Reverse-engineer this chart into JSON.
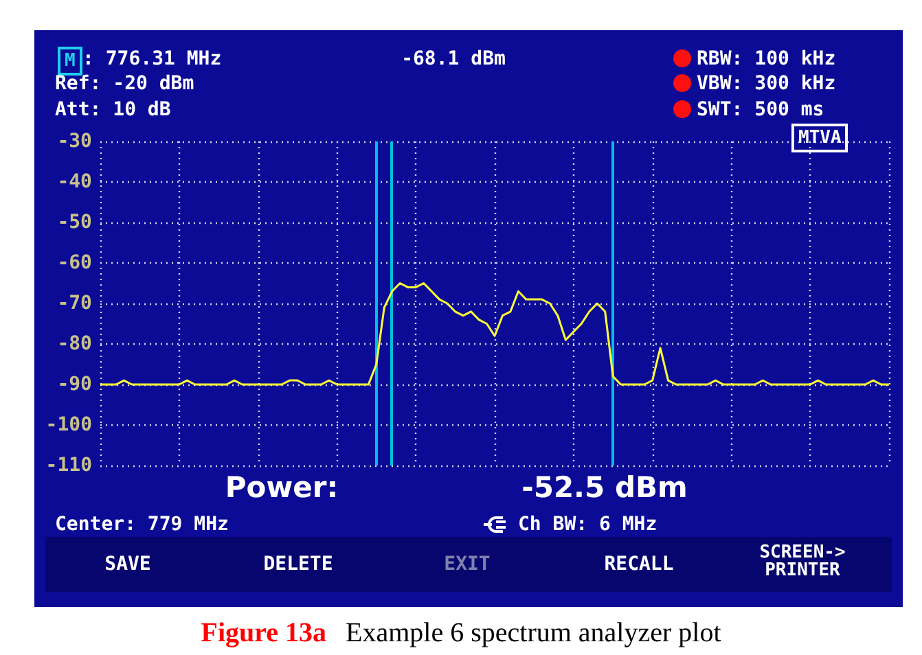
{
  "chart_data": {
    "type": "line",
    "title": "Figure 13a",
    "subtitle": "Example 6 spectrum analyzer plot",
    "categories": [
      null,
      null,
      null,
      null,
      null,
      null,
      null,
      null,
      null,
      null,
      null,
      null,
      null,
      null,
      null,
      null,
      null,
      null,
      null,
      null,
      null,
      null,
      null,
      null,
      null,
      null,
      null,
      null,
      null,
      null,
      null,
      null,
      null,
      null,
      null,
      null,
      null,
      null,
      null,
      null,
      null,
      null,
      null,
      null,
      null,
      null,
      null,
      null,
      null,
      null,
      null,
      null,
      null,
      null,
      null,
      null,
      null,
      null,
      null,
      null,
      null,
      null,
      null,
      null,
      null,
      null,
      null,
      null,
      null,
      null,
      null,
      null,
      null,
      null,
      null,
      null,
      null,
      null,
      null,
      null,
      null,
      null,
      null,
      null,
      null,
      null,
      null,
      null,
      null,
      null,
      null,
      null,
      null,
      null,
      null,
      null,
      null,
      null,
      null,
      null,
      null
    ],
    "series": [
      {
        "color": "#ffff33",
        "values": [
          -90,
          -90,
          -90,
          -89,
          -90,
          -90,
          -90,
          -90,
          -90,
          -90,
          -90,
          -89,
          -90,
          -90,
          -90,
          -90,
          -90,
          -89,
          -90,
          -90,
          -90,
          -90,
          -90,
          -90,
          -89,
          -89,
          -90,
          -90,
          -90,
          -89,
          -90,
          -90,
          -90,
          -90,
          -90,
          -85,
          -71,
          -67,
          -65,
          -66,
          -66,
          -65,
          -67,
          -69,
          -70,
          -72,
          -73,
          -72,
          -74,
          -75,
          -78,
          -73,
          -72,
          -67,
          -69,
          -69,
          -69,
          -70,
          -73,
          -79,
          -77,
          -75,
          -72,
          -70,
          -72,
          -88,
          -90,
          -90,
          -90,
          -90,
          -89,
          -81,
          -89,
          -90,
          -90,
          -90,
          -90,
          -90,
          -89,
          -90,
          -90,
          -90,
          -90,
          -90,
          -89,
          -90,
          -90,
          -90,
          -90,
          -90,
          -90,
          -89,
          -90,
          -90,
          -90,
          -90,
          -90,
          -90,
          -89,
          -90,
          -90
        ]
      }
    ],
    "ylim": [
      -110,
      -30
    ],
    "yticks": [
      -110,
      -100,
      -90,
      -80,
      -70,
      -60,
      -50,
      -40,
      -30
    ],
    "tick_labels": "y",
    "grid": true,
    "line_style": "solid",
    "annotations": [
      "M",
      ": 776.31 MHz",
      "-68.1 dBm",
      "RBW: 100 kHz",
      "VBW: 300 kHz",
      "SWT: 500 ms",
      "Ref: -20 dBm",
      "Att: 10 dB",
      "MTVA",
      "Power:",
      "-52.5 dBm",
      "Center: 779 MHz",
      "Ch BW: 6 MHz",
      "SAVE",
      "DELETE",
      "EXIT",
      "RECALL",
      "SCREEN->\nPRINTER"
    ]
  }
}
